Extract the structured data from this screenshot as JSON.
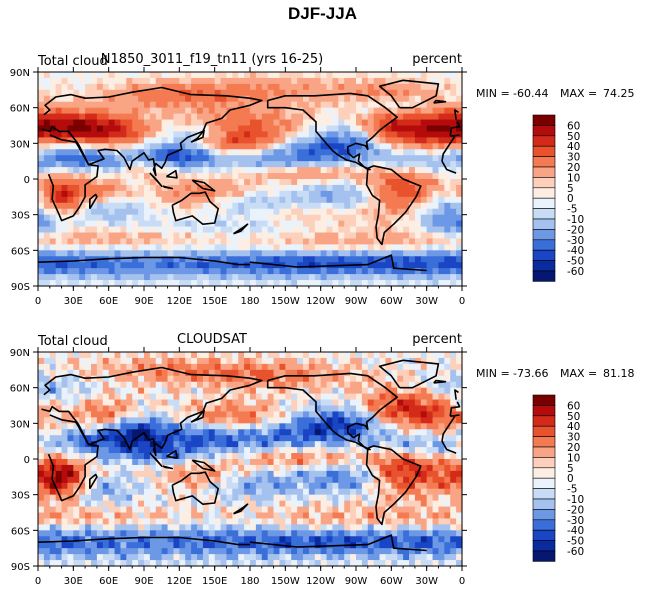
{
  "figure_title": "DJF-JJA",
  "chart_data": [
    {
      "type": "heatmap",
      "variable": "Total cloud",
      "title": "N1850_3011_f19_tn11 (yrs 16-25)",
      "units": "percent",
      "min_label": "MIN =",
      "min_value": "-60.44",
      "max_label": "MAX =",
      "max_value": "74.25",
      "x_ticks": [
        "0",
        "30E",
        "60E",
        "90E",
        "120E",
        "150E",
        "180",
        "150W",
        "120W",
        "90W",
        "60W",
        "30W",
        "0"
      ],
      "y_ticks": [
        "90N",
        "60N",
        "30N",
        "0",
        "30S",
        "60S",
        "90S"
      ],
      "colorbar_levels": [
        "60",
        "50",
        "40",
        "30",
        "20",
        "10",
        "5",
        "0",
        "-5",
        "-10",
        "-20",
        "-30",
        "-40",
        "-50",
        "-60"
      ],
      "xlim": [
        0,
        360
      ],
      "ylim": [
        -90,
        90
      ]
    },
    {
      "type": "heatmap",
      "variable": "Total cloud",
      "title": "CLOUDSAT",
      "units": "percent",
      "min_label": "MIN =",
      "min_value": "-73.66",
      "max_label": "MAX =",
      "max_value": "81.18",
      "x_ticks": [
        "0",
        "30E",
        "60E",
        "90E",
        "120E",
        "150E",
        "180",
        "150W",
        "120W",
        "90W",
        "60W",
        "30W",
        "0"
      ],
      "y_ticks": [
        "90N",
        "60N",
        "30N",
        "0",
        "30S",
        "60S",
        "90S"
      ],
      "colorbar_levels": [
        "60",
        "50",
        "40",
        "30",
        "20",
        "10",
        "5",
        "0",
        "-5",
        "-10",
        "-20",
        "-30",
        "-40",
        "-50",
        "-60"
      ],
      "xlim": [
        0,
        360
      ],
      "ylim": [
        -90,
        90
      ]
    }
  ],
  "colorbar_colors": [
    "#7a0000",
    "#b40c0c",
    "#d42a1a",
    "#e8522c",
    "#f47a52",
    "#f9a585",
    "#fcd0bb",
    "#fdeee3",
    "#eaf2fb",
    "#c9dcf5",
    "#a5c1ee",
    "#6d98e6",
    "#3a6fd9",
    "#1a45c4",
    "#0a2aa0",
    "#051770"
  ]
}
